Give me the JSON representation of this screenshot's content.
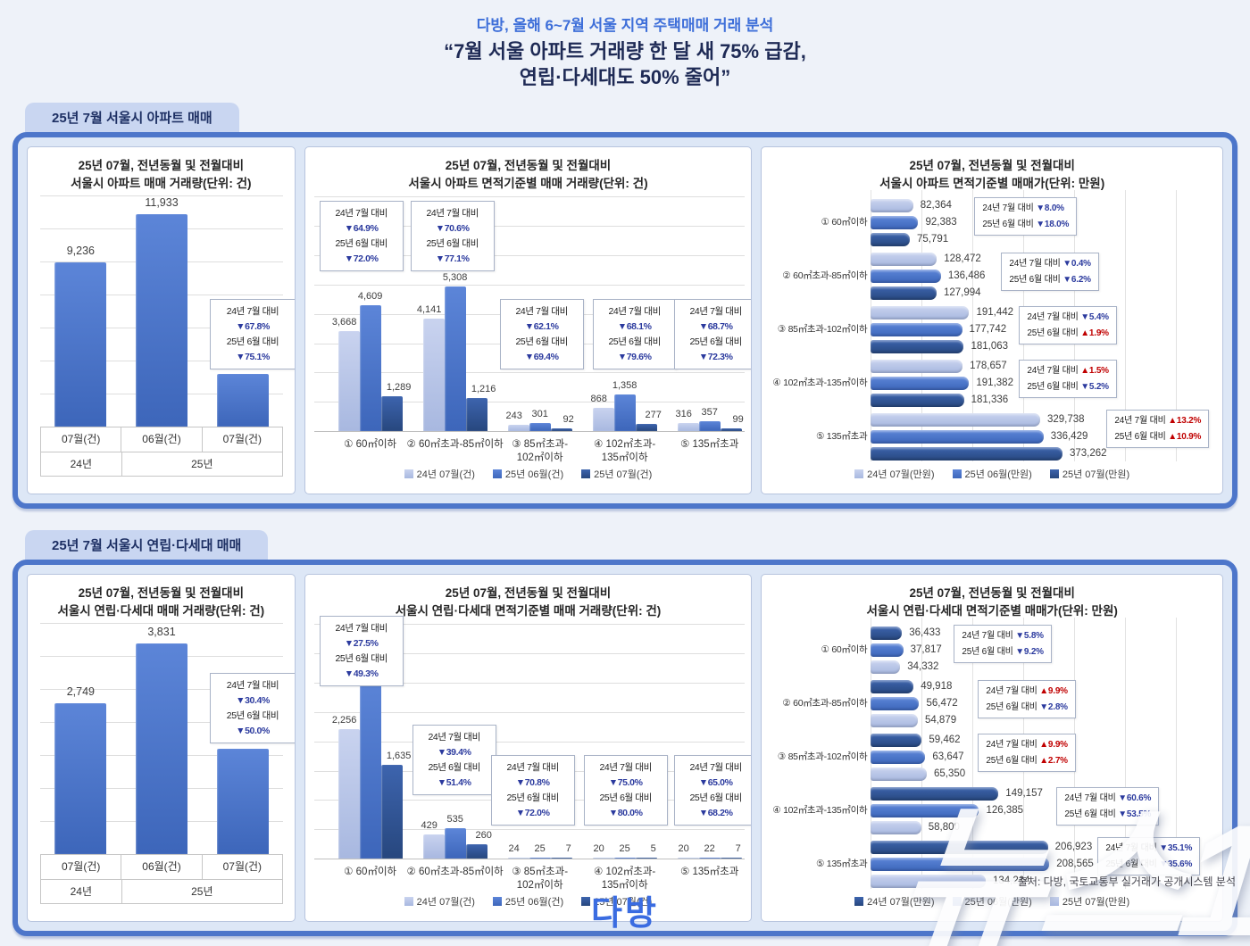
{
  "header": {
    "subtitle": "다방, 올해 6~7월 서울 지역 주택매매 거래 분석",
    "title_line1": "“7월 서울 아파트 거래량 한 달 새 75% 급감,",
    "title_line2": "연립·다세대도 50% 줄어”"
  },
  "sections": [
    {
      "tab": "25년 7월 서울시 아파트 매매"
    },
    {
      "tab": "25년 7월 서울시 연립·다세대 매매"
    }
  ],
  "chart_data": [
    {
      "type": "bar",
      "title": [
        "25년 07월, 전년동월 및 전월대비",
        "서울시 아파트 매매 거래량(단위: 건)"
      ],
      "categories": [
        "07월(건)",
        "06월(건)",
        "07월(건)"
      ],
      "year_groups": [
        {
          "label": "24년",
          "span": 1
        },
        {
          "label": "25년",
          "span": 2
        }
      ],
      "values": [
        9236,
        11933,
        2973
      ],
      "ylim": [
        0,
        13000
      ],
      "grid": true,
      "annotations": [
        [
          "24년 7월 대비",
          "▼67.8%",
          "25년 6월 대비",
          "▼75.1%"
        ]
      ]
    },
    {
      "type": "grouped-bar",
      "title": [
        "25년 07월, 전년동월 및 전월대비",
        "서울시 아파트 면적기준별 매매 거래량(단위: 건)"
      ],
      "categories": [
        [
          "① 60㎡이하"
        ],
        [
          "② 60㎡초과-85㎡이하"
        ],
        [
          "③ 85㎡초과-",
          "102㎡이하"
        ],
        [
          "④ 102㎡초과-",
          "135㎡이하"
        ],
        [
          "⑤ 135㎡초과"
        ]
      ],
      "series": [
        {
          "name": "24년 07월(건)",
          "color": "light",
          "values": [
            3668,
            4141,
            243,
            868,
            316
          ]
        },
        {
          "name": "25년 06월(건)",
          "color": "mid",
          "values": [
            4609,
            5308,
            301,
            1358,
            357
          ]
        },
        {
          "name": "25년 07월(건)",
          "color": "dark",
          "values": [
            1289,
            1216,
            92,
            277,
            99
          ]
        }
      ],
      "ylim": [
        0,
        8600
      ],
      "grid": true,
      "legend_position": "bottom",
      "annotations": [
        [
          "24년 7월 대비",
          "▼64.9%",
          "25년 6월 대비",
          "▼72.0%"
        ],
        [
          "24년 7월 대비",
          "▼70.6%",
          "25년 6월 대비",
          "▼77.1%"
        ],
        [
          "24년 7월 대비",
          "▼62.1%",
          "25년 6월 대비",
          "▼69.4%"
        ],
        [
          "24년 7월 대비",
          "▼68.1%",
          "25년 6월 대비",
          "▼79.6%"
        ],
        [
          "24년 7월 대비",
          "▼68.7%",
          "25년 6월 대비",
          "▼72.3%"
        ]
      ]
    },
    {
      "type": "h-grouped-bar",
      "title": [
        "25년 07월, 전년동월 및 전월대비",
        "서울시 아파트 면적기준별 매매가(단위: 만원)"
      ],
      "categories": [
        "① 60㎡이하",
        "② 60㎡초과-85㎡이하",
        "③ 85㎡초과-102㎡이하",
        "④ 102㎡초과-135㎡이하",
        "⑤ 135㎡초과"
      ],
      "series": [
        {
          "name": "24년 07월(만원)",
          "color": "light",
          "values": [
            82364,
            128472,
            191442,
            178657,
            329738
          ]
        },
        {
          "name": "25년 06월(만원)",
          "color": "mid",
          "values": [
            92383,
            136486,
            177742,
            191382,
            336429
          ]
        },
        {
          "name": "25년 07월(만원)",
          "color": "dark",
          "values": [
            75791,
            127994,
            181063,
            181336,
            373262
          ]
        }
      ],
      "xlim": [
        0,
        400000
      ],
      "grid": true,
      "legend_position": "bottom",
      "annotations": [
        [
          "24년 7월 대비 ▼8.0%",
          "25년 6월 대비 ▼18.0%"
        ],
        [
          "24년 7월 대비 ▼0.4%",
          "25년 6월 대비 ▼6.2%"
        ],
        [
          "24년 7월 대비 ▼5.4%",
          "25년 6월 대비 ▲1.9%"
        ],
        [
          "24년 7월 대비 ▲1.5%",
          "25년 6월 대비 ▼5.2%"
        ],
        [
          "24년 7월 대비 ▲13.2%",
          "25년 6월 대비 ▲10.9%"
        ]
      ]
    },
    {
      "type": "bar",
      "title": [
        "25년 07월, 전년동월 및 전월대비",
        "서울시 연립·다세대 매매 거래량(단위: 건)"
      ],
      "categories": [
        "07월(건)",
        "06월(건)",
        "07월(건)"
      ],
      "year_groups": [
        {
          "label": "24년",
          "span": 1
        },
        {
          "label": "25년",
          "span": 2
        }
      ],
      "values": [
        2749,
        3831,
        1914
      ],
      "ylim": [
        0,
        4200
      ],
      "grid": true,
      "annotations": [
        [
          "24년 7월 대비",
          "▼30.4%",
          "25년 6월 대비",
          "▼50.0%"
        ]
      ]
    },
    {
      "type": "grouped-bar",
      "title": [
        "25년 07월, 전년동월 및 전월대비",
        "서울시 연립·다세대 면적기준별 매매 거래량(단위: 건)"
      ],
      "categories": [
        [
          "① 60㎡이하"
        ],
        [
          "② 60㎡초과-85㎡이하"
        ],
        [
          "③ 85㎡초과-",
          "102㎡이하"
        ],
        [
          "④ 102㎡초과-",
          "135㎡이하"
        ],
        [
          "⑤ 135㎡초과"
        ]
      ],
      "series": [
        {
          "name": "24년 07월(건)",
          "color": "light",
          "values": [
            2256,
            429,
            24,
            20,
            20
          ]
        },
        {
          "name": "25년 06월(건)",
          "color": "mid",
          "values": [
            3224,
            535,
            25,
            25,
            22
          ]
        },
        {
          "name": "25년 07월(건)",
          "color": "dark",
          "values": [
            1635,
            260,
            7,
            5,
            7
          ]
        }
      ],
      "ylim": [
        0,
        4100
      ],
      "grid": true,
      "legend_position": "bottom",
      "annotations": [
        [
          "24년 7월 대비",
          "▼27.5%",
          "25년 6월 대비",
          "▼49.3%"
        ],
        [
          "24년 7월 대비",
          "▼39.4%",
          "25년 6월 대비",
          "▼51.4%"
        ],
        [
          "24년 7월 대비",
          "▼70.8%",
          "25년 6월 대비",
          "▼72.0%"
        ],
        [
          "24년 7월 대비",
          "▼75.0%",
          "25년 6월 대비",
          "▼80.0%"
        ],
        [
          "24년 7월 대비",
          "▼65.0%",
          "25년 6월 대비",
          "▼68.2%"
        ]
      ]
    },
    {
      "type": "h-grouped-bar",
      "title": [
        "25년 07월, 전년동월 및 전월대비",
        "서울시 연립·다세대 면적기준별 매매가(단위: 만원)"
      ],
      "categories": [
        "① 60㎡이하",
        "② 60㎡초과-85㎡이하",
        "③ 85㎡초과-102㎡이하",
        "④ 102㎡초과-135㎡이하",
        "⑤ 135㎡초과"
      ],
      "series": [
        {
          "name": "24년 07월(만원)",
          "color": "dark",
          "values": [
            36433,
            49918,
            59462,
            149157,
            206923
          ]
        },
        {
          "name": "25년 06월(만원)",
          "color": "mid",
          "values": [
            37817,
            56472,
            63647,
            126385,
            208565
          ]
        },
        {
          "name": "25년 07월(만원)",
          "color": "light",
          "values": [
            34332,
            54879,
            65350,
            58800,
            134214
          ]
        }
      ],
      "xlim": [
        0,
        240000
      ],
      "grid": true,
      "legend_position": "bottom",
      "annotations": [
        [
          "24년 7월 대비 ▼5.8%",
          "25년 6월 대비 ▼9.2%"
        ],
        [
          "24년 7월 대비 ▲9.9%",
          "25년 6월 대비 ▼2.8%"
        ],
        [
          "24년 7월 대비 ▲9.9%",
          "25년 6월 대비 ▲2.7%"
        ],
        [
          "24년 7월 대비 ▼60.6%",
          "25년 6월 대비 ▼53.5%"
        ],
        [
          "24년 7월 대비 ▼35.1%",
          "25년 6월 대비 ▼35.6%"
        ]
      ]
    }
  ],
  "footer": {
    "source": "출처: 다방, 국토교통부 실거래가 공개시스템 분석",
    "logo": "다방",
    "watermark": "뉴스1"
  },
  "colors": {
    "light": "#b0bfe4",
    "mid": "#4472c4",
    "dark": "#2e5596",
    "container_border": "#4d76ca",
    "container_bg": "#dde7f6",
    "tab_bg": "#c9d6f1",
    "tab_text": "#1d2f63",
    "header_blue": "#3e6fd9",
    "header_navy": "#1e2a55",
    "down_arrow": "#2b3a9e",
    "up_arrow": "#c00000"
  }
}
